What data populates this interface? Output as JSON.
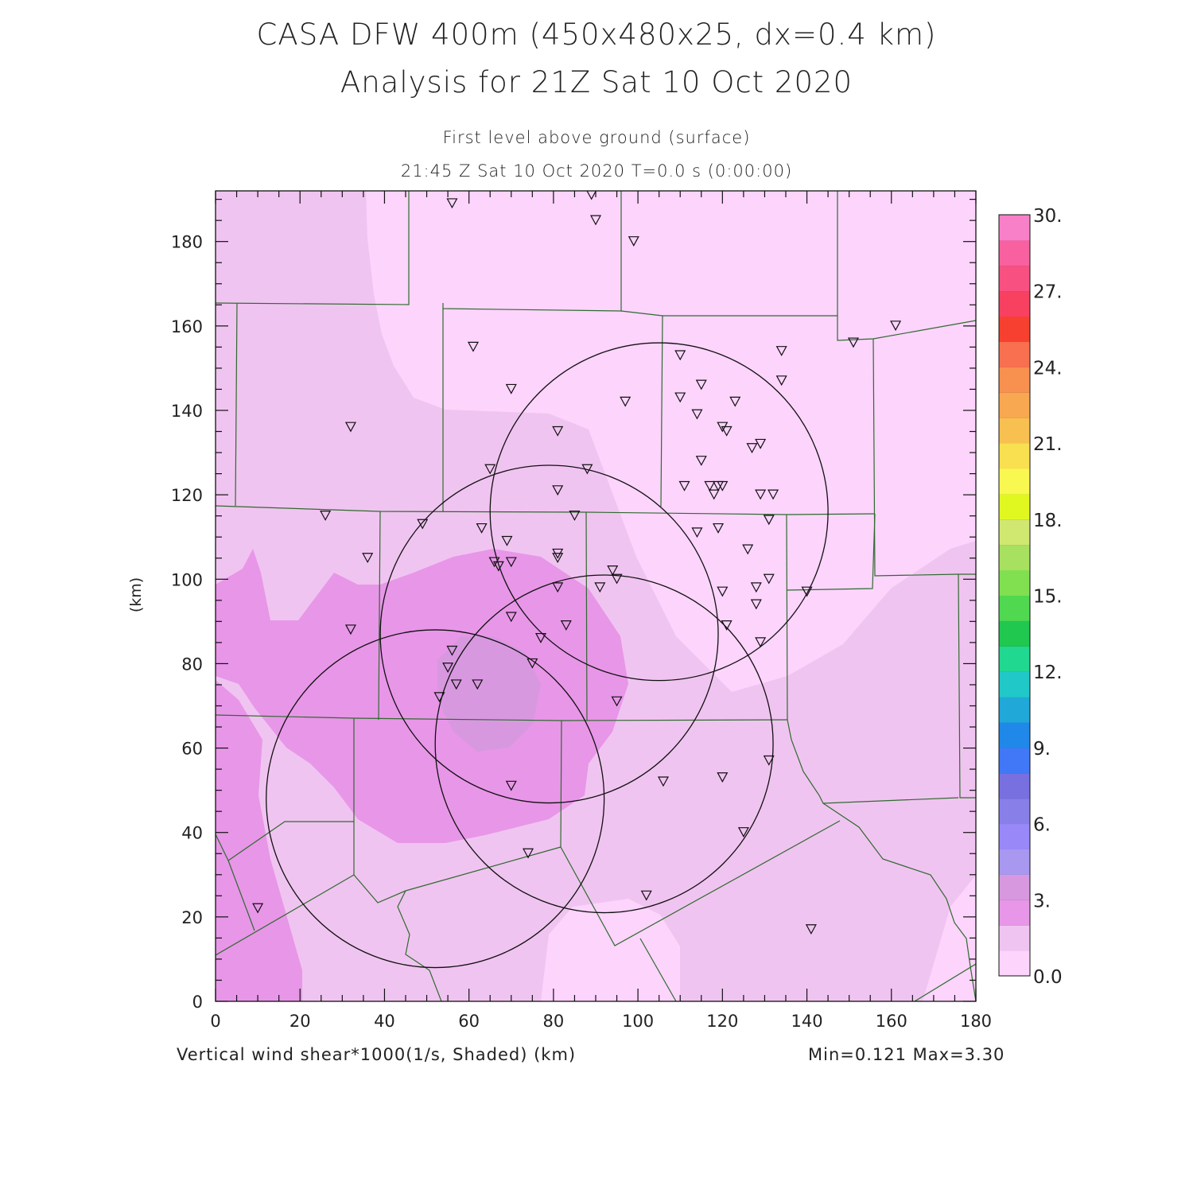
{
  "title_line1": "CASA DFW 400m (450x480x25, dx=0.4 km)",
  "title_line2": "Analysis for 21Z Sat 10 Oct 2020",
  "subtitle_level": "First level above ground (surface)",
  "subtitle_time": "21:45 Z Sat 10 Oct 2020    T=0.0 s (0:00:00)",
  "field_caption": "Vertical wind shear*1000(1/s, Shaded)  (km)",
  "minmax_caption": "Min=0.121 Max=3.30",
  "x_axis": {
    "label": "",
    "min": 0,
    "max": 180,
    "ticks": [
      "0",
      "20",
      "40",
      "60",
      "80",
      "100",
      "120",
      "140",
      "160",
      "180"
    ]
  },
  "y_axis": {
    "label": "(km)",
    "min": 0,
    "max": 192,
    "ticks": [
      "0",
      "20",
      "40",
      "60",
      "80",
      "100",
      "120",
      "140",
      "160",
      "180"
    ]
  },
  "colorbar": {
    "labels": [
      "0.0",
      "3.",
      "6.",
      "9.",
      "12.",
      "15.",
      "18.",
      "21.",
      "24.",
      "27.",
      "30."
    ],
    "colors": [
      "#fcd4fc",
      "#f0c4f0",
      "#e896e8",
      "#d898e0",
      "#a898f0",
      "#9888f8",
      "#8880e8",
      "#7870e0",
      "#4078f8",
      "#2088e8",
      "#20a8d8",
      "#20c8c8",
      "#20d890",
      "#20c850",
      "#50d850",
      "#80e050",
      "#a8e060",
      "#d0e870",
      "#e0f820",
      "#f8f850",
      "#f8e050",
      "#f8c050",
      "#f8a850",
      "#f89050",
      "#f87050",
      "#f84030",
      "#f84060",
      "#f85080",
      "#f860a0",
      "#f880c8"
    ]
  },
  "chart_data": {
    "type": "contour-map",
    "field": "Vertical wind shear*1000 (1/s)",
    "min": 0.121,
    "max": 3.3,
    "radar_rings": [
      {
        "center_km": [
          52,
          48
        ],
        "radius_km": 40
      },
      {
        "center_km": [
          79,
          87
        ],
        "radius_km": 40
      },
      {
        "center_km": [
          92,
          61
        ],
        "radius_km": 40
      },
      {
        "center_km": [
          105,
          116
        ],
        "radius_km": 40
      }
    ],
    "station_markers_km": [
      [
        56,
        189
      ],
      [
        89,
        191
      ],
      [
        90,
        185
      ],
      [
        99,
        180
      ],
      [
        61,
        155
      ],
      [
        70,
        145
      ],
      [
        32,
        136
      ],
      [
        97,
        142
      ],
      [
        110,
        153
      ],
      [
        134,
        154
      ],
      [
        115,
        146
      ],
      [
        110,
        143
      ],
      [
        123,
        142
      ],
      [
        134,
        147
      ],
      [
        81,
        135
      ],
      [
        114,
        139
      ],
      [
        120,
        136
      ],
      [
        121,
        135
      ],
      [
        129,
        132
      ],
      [
        127,
        131
      ],
      [
        65,
        126
      ],
      [
        88,
        126
      ],
      [
        115,
        128
      ],
      [
        81,
        121
      ],
      [
        111,
        122
      ],
      [
        117,
        122
      ],
      [
        118,
        120
      ],
      [
        119,
        122
      ],
      [
        120,
        122
      ],
      [
        129,
        120
      ],
      [
        132,
        120
      ],
      [
        26,
        115
      ],
      [
        49,
        113
      ],
      [
        63,
        112
      ],
      [
        85,
        115
      ],
      [
        131,
        114
      ],
      [
        114,
        111
      ],
      [
        119,
        112
      ],
      [
        36,
        105
      ],
      [
        69,
        109
      ],
      [
        66,
        104
      ],
      [
        67,
        103
      ],
      [
        70,
        104
      ],
      [
        81,
        106
      ],
      [
        81,
        105
      ],
      [
        94,
        102
      ],
      [
        95,
        100
      ],
      [
        91,
        98
      ],
      [
        81,
        98
      ],
      [
        120,
        97
      ],
      [
        126,
        107
      ],
      [
        128,
        98
      ],
      [
        131,
        100
      ],
      [
        140,
        97
      ],
      [
        32,
        88
      ],
      [
        70,
        91
      ],
      [
        83,
        89
      ],
      [
        121,
        89
      ],
      [
        128,
        94
      ],
      [
        77,
        86
      ],
      [
        56,
        83
      ],
      [
        75,
        80
      ],
      [
        55,
        79
      ],
      [
        57,
        75
      ],
      [
        62,
        75
      ],
      [
        53,
        72
      ],
      [
        95,
        71
      ],
      [
        129,
        85
      ],
      [
        131,
        57
      ],
      [
        120,
        53
      ],
      [
        106,
        52
      ],
      [
        70,
        51
      ],
      [
        125,
        40
      ],
      [
        74,
        35
      ],
      [
        10,
        22
      ],
      [
        102,
        25
      ],
      [
        141,
        17
      ],
      [
        151,
        156
      ],
      [
        161,
        160
      ]
    ]
  }
}
